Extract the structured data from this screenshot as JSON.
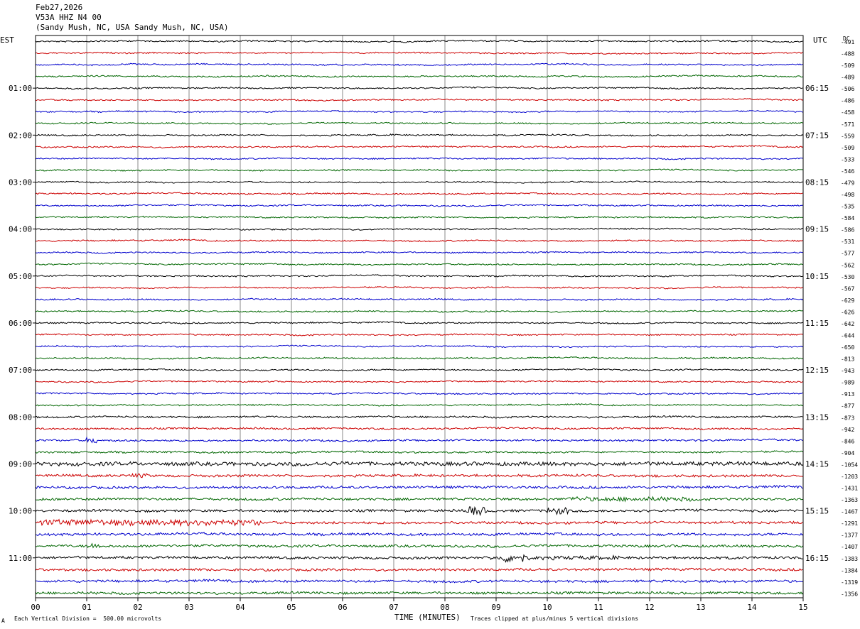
{
  "header": {
    "date": "Feb27,2026",
    "station": "V53A HHZ N4 00",
    "location": "(Sandy Mush, NC, USA Sandy Mush, NC, USA)"
  },
  "left_tz": "EST",
  "right_tz": "UTC",
  "dc_label": "DC",
  "footer": {
    "scale_note": "Each Vertical Division =  500.00 microvolts",
    "xlabel": "TIME (MINUTES)",
    "clip_note": "Traces clipped at plus/minus 5 vertical divisions",
    "corner_mark": "A"
  },
  "chart_data": {
    "type": "line",
    "subtype": "helicorder",
    "xlabel": "TIME (MINUTES)",
    "xlim": [
      0,
      15
    ],
    "x_ticks": [
      "00",
      "01",
      "02",
      "03",
      "04",
      "05",
      "06",
      "07",
      "08",
      "09",
      "10",
      "11",
      "12",
      "13",
      "14",
      "15"
    ],
    "grid": true,
    "trace_colors": [
      "#000000",
      "#cc0000",
      "#0000cc",
      "#006600"
    ],
    "left_hour_labels": [
      "01:00",
      "02:00",
      "03:00",
      "04:00",
      "05:00",
      "06:00",
      "07:00",
      "08:00",
      "09:00",
      "10:00",
      "11:00"
    ],
    "right_hour_labels": [
      "06:15",
      "07:15",
      "08:15",
      "09:15",
      "10:15",
      "11:15",
      "12:15",
      "13:15",
      "14:15",
      "15:15",
      "16:15"
    ],
    "dc_offsets": [
      "-491",
      "-488",
      "-509",
      "-489",
      "-506",
      "-486",
      "-458",
      "-571",
      "-559",
      "-509",
      "-533",
      "-546",
      "-479",
      "-498",
      "-535",
      "-584",
      "-586",
      "-531",
      "-577",
      "-562",
      "-530",
      "-567",
      "-629",
      "-626",
      "-642",
      "-644",
      "-650",
      "-813",
      "-943",
      "-989",
      "-913",
      "-877",
      "-873",
      "-942",
      "-846",
      "-904",
      "-1054",
      "-1203",
      "-1431",
      "-1363",
      "-1467",
      "-1291",
      "-1377",
      "-1407",
      "-1383",
      "-1384",
      "-1319",
      "-1356"
    ]
  }
}
